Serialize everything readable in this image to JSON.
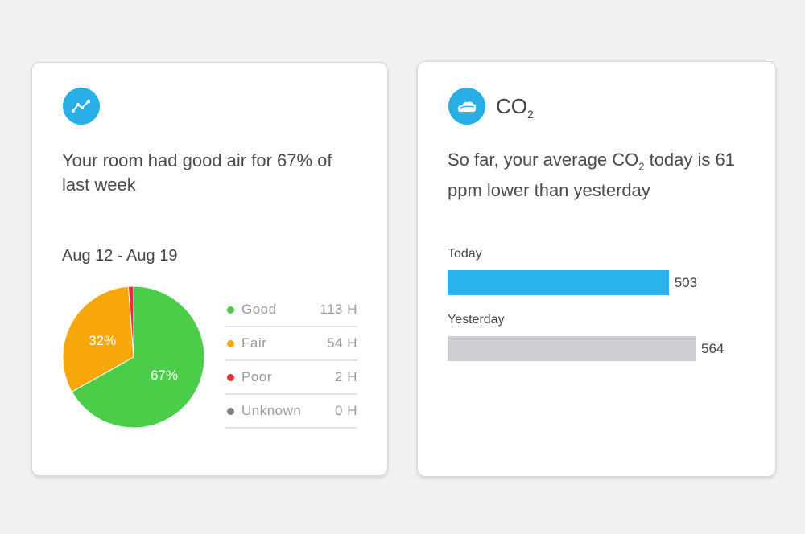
{
  "air_card": {
    "icon": "trend-line-icon",
    "headline": "Your room had good air for 67% of last week",
    "date_range": "Aug 12 - Aug 19",
    "pie": [
      {
        "label": "Good",
        "hours": 113,
        "value_label": "113 H",
        "color": "#4ccd4a",
        "pct_label": "67%"
      },
      {
        "label": "Fair",
        "hours": 54,
        "value_label": "54 H",
        "color": "#f8a70b",
        "pct_label": "32%"
      },
      {
        "label": "Poor",
        "hours": 2,
        "value_label": "2 H",
        "color": "#e0323a",
        "pct_label": ""
      },
      {
        "label": "Unknown",
        "hours": 0,
        "value_label": "0 H",
        "color": "#7d7f83",
        "pct_label": ""
      }
    ]
  },
  "co2_card": {
    "icon": "cloud-icon",
    "title_main": "CO",
    "title_sub": "2",
    "headline_a": "So far, your average CO",
    "headline_sub": "2",
    "headline_b": " today is 61 ppm lower than yesterday",
    "bars": [
      {
        "label": "Today",
        "value": 503,
        "value_label": "503",
        "color": "#29b3ea"
      },
      {
        "label": "Yesterday",
        "value": 564,
        "value_label": "564",
        "color": "#cdcfd3"
      }
    ]
  }
}
